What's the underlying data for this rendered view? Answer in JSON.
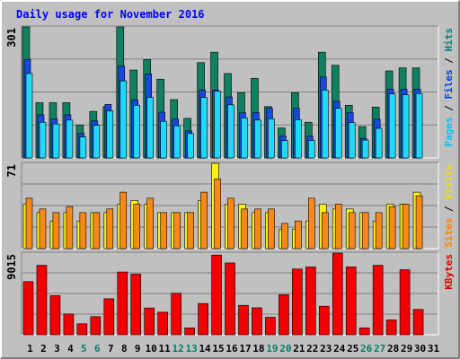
{
  "chart_data": {
    "type": "bar",
    "title": "Daily usage for November 2016",
    "categories": [
      "1",
      "2",
      "3",
      "4",
      "5",
      "6",
      "7",
      "8",
      "9",
      "10",
      "11",
      "12",
      "13",
      "14",
      "15",
      "16",
      "17",
      "18",
      "19",
      "20",
      "21",
      "22",
      "23",
      "24",
      "25",
      "26",
      "27",
      "28",
      "29",
      "30",
      "31"
    ],
    "weekend_days": [
      "5",
      "6",
      "12",
      "13",
      "19",
      "20",
      "26",
      "27"
    ],
    "panels": [
      {
        "id": "hits-files-pages",
        "max_label": "301",
        "ymax": 301,
        "axis_label_parts": [
          {
            "text": "Pages",
            "color": "#00c8f8"
          },
          {
            "text": " / ",
            "color": "#000000"
          },
          {
            "text": "Files",
            "color": "#0040e8"
          },
          {
            "text": " / ",
            "color": "#000000"
          },
          {
            "text": "Hits",
            "color": "#008070"
          }
        ],
        "series": [
          {
            "name": "Hits",
            "color": "#108060",
            "values": [
              301,
              127,
              127,
              127,
              76,
              107,
              118,
              301,
              202,
              226,
              181,
              134,
              91,
              219,
              243,
              194,
              150,
              183,
              118,
              69,
              150,
              82,
              243,
              213,
              121,
              72,
              117,
              200,
              207,
              207,
              0
            ]
          },
          {
            "name": "Files",
            "color": "#1848e0",
            "values": [
              226,
              99,
              89,
              99,
              56,
              85,
              123,
              211,
              133,
              193,
              105,
              89,
              62,
              156,
              156,
              140,
              104,
              104,
              114,
              50,
              114,
              50,
              186,
              130,
              104,
              45,
              89,
              158,
              158,
              158,
              0
            ]
          },
          {
            "name": "Pages",
            "color": "#20d8f8",
            "values": [
              194,
              82,
              78,
              87,
              48,
              75,
              108,
              177,
              121,
              139,
              84,
              74,
              56,
              139,
              153,
              122,
              92,
              87,
              90,
              40,
              88,
              40,
              156,
              114,
              81,
              41,
              68,
              147,
              145,
              148,
              0
            ]
          }
        ]
      },
      {
        "id": "visits-sites",
        "max_label": "71",
        "ymax": 71,
        "axis_label_parts": [
          {
            "text": "Sites",
            "color": "#ff8000"
          },
          {
            "text": " / ",
            "color": "#000000"
          },
          {
            "text": "Visits",
            "color": "#f0e000"
          }
        ],
        "series": [
          {
            "name": "Visits",
            "color": "#f8f018",
            "values": [
              37,
              30,
              23,
              30,
              23,
              30,
              30,
              37,
              40,
              37,
              30,
              30,
              30,
              40,
              71,
              37,
              37,
              30,
              30,
              16,
              16,
              23,
              37,
              33,
              33,
              30,
              23,
              37,
              37,
              47,
              0
            ]
          },
          {
            "name": "Sites",
            "color": "#f88818",
            "values": [
              42,
              33,
              30,
              35,
              30,
              30,
              33,
              47,
              37,
              42,
              30,
              30,
              30,
              47,
              58,
              42,
              33,
              33,
              33,
              21,
              23,
              42,
              30,
              37,
              30,
              30,
              30,
              35,
              37,
              44,
              0
            ]
          }
        ]
      },
      {
        "id": "kbytes",
        "max_label": "9015",
        "ymax": 9015,
        "axis_label_parts": [
          {
            "text": "KBytes",
            "color": "#e00000"
          }
        ],
        "series": [
          {
            "name": "KBytes",
            "color": "#f00000",
            "values": [
              5870,
              7670,
              4320,
              2290,
              1210,
              2000,
              3980,
              6930,
              6690,
              2960,
              2490,
              4590,
              760,
              3450,
              8800,
              7930,
              3250,
              2980,
              1930,
              4430,
              7260,
              7490,
              3150,
              9015,
              7490,
              760,
              7670,
              1640,
              7180,
              2800,
              0
            ]
          }
        ]
      }
    ]
  }
}
